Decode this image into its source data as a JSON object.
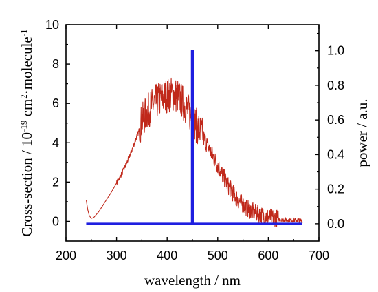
{
  "chart_data": {
    "type": "line",
    "xlabel": "wavelength / nm",
    "ylabel_left": {
      "prefix": "Cross-section / 10",
      "exp1": "-19",
      "middle": " cm",
      "exp2": "2",
      "suffix": "·molecule",
      "exp3": "-1"
    },
    "ylabel_right": "power / a.u.",
    "xlim": [
      200,
      700
    ],
    "ylim_left": [
      -1,
      10
    ],
    "ylim_right": [
      -0.1,
      1.15
    ],
    "x_ticks": [
      "200",
      "300",
      "400",
      "500",
      "600",
      "700"
    ],
    "y_left_ticks": [
      "0",
      "2",
      "4",
      "6",
      "8",
      "10"
    ],
    "y_right_ticks": [
      "0.0",
      "0.2",
      "0.4",
      "0.6",
      "0.8",
      "1.0"
    ],
    "series": [
      {
        "axis": "left",
        "color": "#c0281a",
        "noisy": true,
        "x": [
          240,
          243,
          246,
          250,
          255,
          260,
          265,
          270,
          280,
          290,
          300,
          310,
          320,
          330,
          340,
          350,
          360,
          370,
          380,
          390,
          400,
          410,
          420,
          430,
          440,
          450,
          460,
          470,
          480,
          490,
          500,
          510,
          520,
          530,
          540,
          550,
          560,
          570,
          580,
          590,
          600,
          610,
          620,
          630,
          640,
          650,
          660,
          667
        ],
        "y": [
          1.1,
          0.6,
          0.3,
          0.15,
          0.2,
          0.35,
          0.5,
          0.7,
          1.1,
          1.5,
          1.95,
          2.4,
          2.95,
          3.6,
          4.3,
          5.0,
          5.45,
          5.8,
          6.05,
          6.2,
          6.3,
          6.4,
          6.3,
          6.0,
          5.6,
          5.1,
          4.7,
          4.3,
          3.8,
          3.3,
          2.8,
          2.3,
          1.8,
          1.4,
          1.05,
          0.8,
          0.6,
          0.45,
          0.32,
          0.24,
          0.18,
          0.14,
          0.11,
          0.08,
          0.06,
          0.05,
          0.04,
          0.03
        ]
      },
      {
        "axis": "right",
        "color": "#1f1fe0",
        "x": [
          240,
          449,
          449,
          451,
          451,
          667
        ],
        "y": [
          0.0,
          0.0,
          1.0,
          1.0,
          0.0,
          0.0
        ]
      }
    ]
  }
}
